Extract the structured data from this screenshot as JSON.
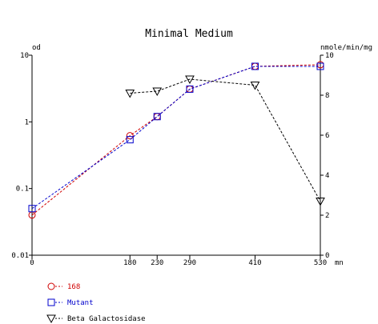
{
  "chart_data": {
    "type": "line",
    "title": "Minimal Medium",
    "left_axis": {
      "label": "od",
      "scale": "log",
      "range": [
        0.01,
        10
      ],
      "ticks": [
        {
          "value": 0.01,
          "label": "0.01"
        },
        {
          "value": 0.1,
          "label": "0.1"
        },
        {
          "value": 1,
          "label": "1"
        },
        {
          "value": 10,
          "label": "10"
        }
      ]
    },
    "right_axis": {
      "label": "nmole/min/mg",
      "scale": "linear",
      "range": [
        0,
        10
      ],
      "ticks": [
        {
          "value": 0,
          "label": "0"
        },
        {
          "value": 2,
          "label": "2"
        },
        {
          "value": 4,
          "label": "4"
        },
        {
          "value": 6,
          "label": "6"
        },
        {
          "value": 8,
          "label": "8"
        },
        {
          "value": 10,
          "label": "10"
        }
      ]
    },
    "x_axis": {
      "unit": "mn",
      "range": [
        0,
        530
      ],
      "ticks": [
        {
          "value": 0,
          "label": "0"
        },
        {
          "value": 180,
          "label": "180"
        },
        {
          "value": 230,
          "label": "230"
        },
        {
          "value": 290,
          "label": "290"
        },
        {
          "value": 410,
          "label": "410"
        },
        {
          "value": 530,
          "label": "530"
        }
      ]
    },
    "grid": false,
    "legend_position": "bottom-left",
    "series": [
      {
        "name": "168",
        "axis": "left",
        "color": "#d00000",
        "marker": "circle",
        "x": [
          0,
          180,
          230,
          290,
          410,
          530
        ],
        "y": [
          0.04,
          0.62,
          1.2,
          3.1,
          6.8,
          7.2
        ]
      },
      {
        "name": "Mutant",
        "axis": "left",
        "color": "#0000cc",
        "marker": "square",
        "x": [
          0,
          180,
          230,
          290,
          410,
          530
        ],
        "y": [
          0.05,
          0.54,
          1.2,
          3.1,
          6.8,
          6.8
        ]
      },
      {
        "name": "Beta Galactosidase",
        "axis": "right",
        "color": "#000000",
        "marker": "triangle-down",
        "x": [
          180,
          230,
          290,
          410,
          530
        ],
        "y": [
          8.1,
          8.2,
          8.8,
          8.5,
          2.7
        ]
      }
    ]
  }
}
